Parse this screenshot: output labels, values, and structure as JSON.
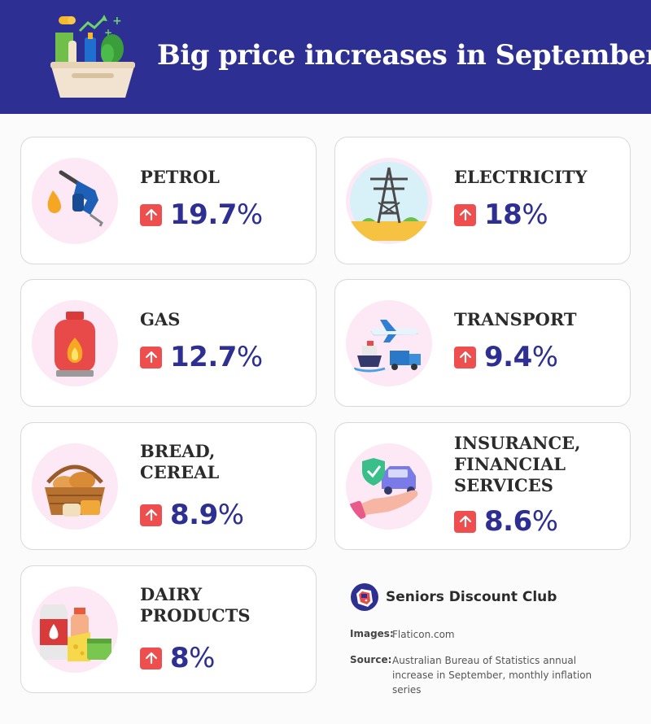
{
  "header": {
    "title": "Big price increases in September"
  },
  "cards": [
    {
      "category": "PETROL",
      "value_number": "19.7",
      "value_unit": "%",
      "icon": "fuel-nozzle-icon"
    },
    {
      "category": "ELECTRICITY",
      "value_number": "18",
      "value_unit": "%",
      "icon": "power-tower-icon"
    },
    {
      "category": "GAS",
      "value_number": "12.7",
      "value_unit": "%",
      "icon": "gas-cylinder-icon"
    },
    {
      "category": "TRANSPORT",
      "value_number": "9.4",
      "value_unit": "%",
      "icon": "transport-icon"
    },
    {
      "category": "BREAD,\nCEREAL",
      "value_number": "8.9",
      "value_unit": "%",
      "icon": "bread-basket-icon"
    },
    {
      "category": "INSURANCE,\nFINANCIAL\nSERVICES",
      "value_number": "8.6",
      "value_unit": "%",
      "icon": "insurance-icon"
    },
    {
      "category": "DAIRY\nPRODUCTS",
      "value_number": "8",
      "value_unit": "%",
      "icon": "dairy-icon"
    }
  ],
  "footer": {
    "brand": "Seniors Discount Club",
    "images_label": "Images:",
    "images_text": "Flaticon.com",
    "source_label": "Source:",
    "source_text": "Australian Bureau of Statistics annual increase in September, monthly inflation series"
  },
  "colors": {
    "header_bg": "#2e2f92",
    "value_text": "#2e2f92",
    "arrow_bg": "#ef4e4e",
    "icon_circle": "#fde8f5"
  }
}
